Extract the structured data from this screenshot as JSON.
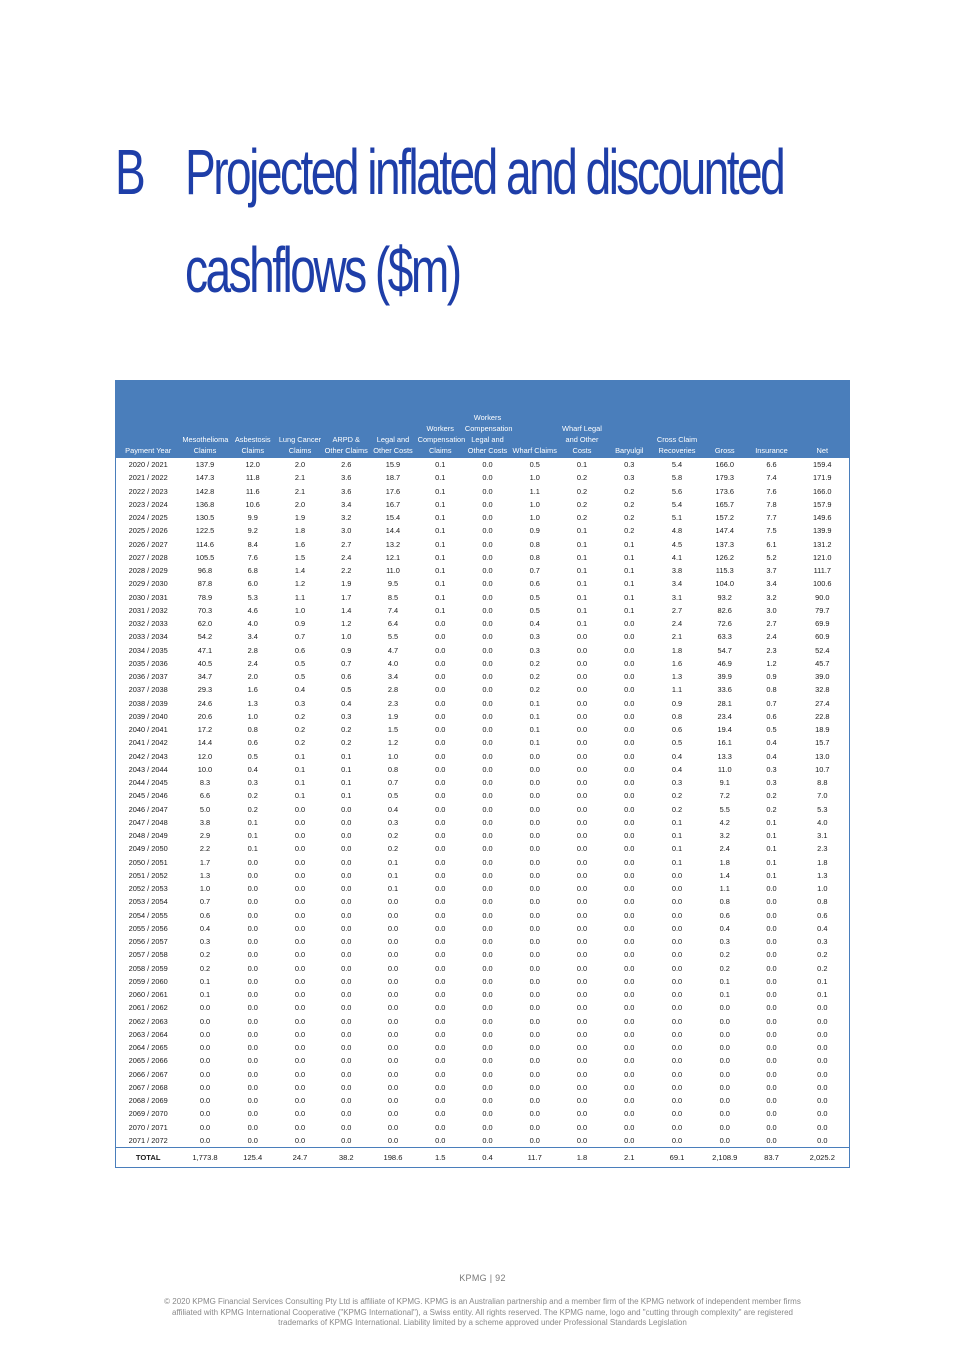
{
  "heading": {
    "letter": "B",
    "title_line1": "Projected inflated and discounted",
    "title_line2": "cashflows ($m)"
  },
  "table": {
    "headers": [
      "Payment Year",
      "Mesothelioma Claims",
      "Asbestosis Claims",
      "Lung Cancer Claims",
      "ARPD & Other Claims",
      "Legal and Other Costs",
      "Workers Compensation Claims",
      "Workers Compensation Legal and Other Costs",
      "Wharf Claims",
      "Wharf Legal and Other Costs",
      "Baryulgil",
      "Cross Claim Recoveries",
      "Gross",
      "Insurance",
      "Net"
    ],
    "rows": [
      [
        "2020 / 2021",
        "137.9",
        "12.0",
        "2.0",
        "2.6",
        "15.9",
        "0.1",
        "0.0",
        "0.5",
        "0.1",
        "0.3",
        "5.4",
        "166.0",
        "6.6",
        "159.4"
      ],
      [
        "2021 / 2022",
        "147.3",
        "11.8",
        "2.1",
        "3.6",
        "18.7",
        "0.1",
        "0.0",
        "1.0",
        "0.2",
        "0.3",
        "5.8",
        "179.3",
        "7.4",
        "171.9"
      ],
      [
        "2022 / 2023",
        "142.8",
        "11.6",
        "2.1",
        "3.6",
        "17.6",
        "0.1",
        "0.0",
        "1.1",
        "0.2",
        "0.2",
        "5.6",
        "173.6",
        "7.6",
        "166.0"
      ],
      [
        "2023 / 2024",
        "136.8",
        "10.6",
        "2.0",
        "3.4",
        "16.7",
        "0.1",
        "0.0",
        "1.0",
        "0.2",
        "0.2",
        "5.4",
        "165.7",
        "7.8",
        "157.9"
      ],
      [
        "2024 / 2025",
        "130.5",
        "9.9",
        "1.9",
        "3.2",
        "15.4",
        "0.1",
        "0.0",
        "1.0",
        "0.2",
        "0.2",
        "5.1",
        "157.2",
        "7.7",
        "149.6"
      ],
      [
        "2025 / 2026",
        "122.5",
        "9.2",
        "1.8",
        "3.0",
        "14.4",
        "0.1",
        "0.0",
        "0.9",
        "0.1",
        "0.2",
        "4.8",
        "147.4",
        "7.5",
        "139.9"
      ],
      [
        "2026 / 2027",
        "114.6",
        "8.4",
        "1.6",
        "2.7",
        "13.2",
        "0.1",
        "0.0",
        "0.8",
        "0.1",
        "0.1",
        "4.5",
        "137.3",
        "6.1",
        "131.2"
      ],
      [
        "2027 / 2028",
        "105.5",
        "7.6",
        "1.5",
        "2.4",
        "12.1",
        "0.1",
        "0.0",
        "0.8",
        "0.1",
        "0.1",
        "4.1",
        "126.2",
        "5.2",
        "121.0"
      ],
      [
        "2028 / 2029",
        "96.8",
        "6.8",
        "1.4",
        "2.2",
        "11.0",
        "0.1",
        "0.0",
        "0.7",
        "0.1",
        "0.1",
        "3.8",
        "115.3",
        "3.7",
        "111.7"
      ],
      [
        "2029 / 2030",
        "87.8",
        "6.0",
        "1.2",
        "1.9",
        "9.5",
        "0.1",
        "0.0",
        "0.6",
        "0.1",
        "0.1",
        "3.4",
        "104.0",
        "3.4",
        "100.6"
      ],
      [
        "2030 / 2031",
        "78.9",
        "5.3",
        "1.1",
        "1.7",
        "8.5",
        "0.1",
        "0.0",
        "0.5",
        "0.1",
        "0.1",
        "3.1",
        "93.2",
        "3.2",
        "90.0"
      ],
      [
        "2031 / 2032",
        "70.3",
        "4.6",
        "1.0",
        "1.4",
        "7.4",
        "0.1",
        "0.0",
        "0.5",
        "0.1",
        "0.1",
        "2.7",
        "82.6",
        "3.0",
        "79.7"
      ],
      [
        "2032 / 2033",
        "62.0",
        "4.0",
        "0.9",
        "1.2",
        "6.4",
        "0.0",
        "0.0",
        "0.4",
        "0.1",
        "0.0",
        "2.4",
        "72.6",
        "2.7",
        "69.9"
      ],
      [
        "2033 / 2034",
        "54.2",
        "3.4",
        "0.7",
        "1.0",
        "5.5",
        "0.0",
        "0.0",
        "0.3",
        "0.0",
        "0.0",
        "2.1",
        "63.3",
        "2.4",
        "60.9"
      ],
      [
        "2034 / 2035",
        "47.1",
        "2.8",
        "0.6",
        "0.9",
        "4.7",
        "0.0",
        "0.0",
        "0.3",
        "0.0",
        "0.0",
        "1.8",
        "54.7",
        "2.3",
        "52.4"
      ],
      [
        "2035 / 2036",
        "40.5",
        "2.4",
        "0.5",
        "0.7",
        "4.0",
        "0.0",
        "0.0",
        "0.2",
        "0.0",
        "0.0",
        "1.6",
        "46.9",
        "1.2",
        "45.7"
      ],
      [
        "2036 / 2037",
        "34.7",
        "2.0",
        "0.5",
        "0.6",
        "3.4",
        "0.0",
        "0.0",
        "0.2",
        "0.0",
        "0.0",
        "1.3",
        "39.9",
        "0.9",
        "39.0"
      ],
      [
        "2037 / 2038",
        "29.3",
        "1.6",
        "0.4",
        "0.5",
        "2.8",
        "0.0",
        "0.0",
        "0.2",
        "0.0",
        "0.0",
        "1.1",
        "33.6",
        "0.8",
        "32.8"
      ],
      [
        "2038 / 2039",
        "24.6",
        "1.3",
        "0.3",
        "0.4",
        "2.3",
        "0.0",
        "0.0",
        "0.1",
        "0.0",
        "0.0",
        "0.9",
        "28.1",
        "0.7",
        "27.4"
      ],
      [
        "2039 / 2040",
        "20.6",
        "1.0",
        "0.2",
        "0.3",
        "1.9",
        "0.0",
        "0.0",
        "0.1",
        "0.0",
        "0.0",
        "0.8",
        "23.4",
        "0.6",
        "22.8"
      ],
      [
        "2040 / 2041",
        "17.2",
        "0.8",
        "0.2",
        "0.2",
        "1.5",
        "0.0",
        "0.0",
        "0.1",
        "0.0",
        "0.0",
        "0.6",
        "19.4",
        "0.5",
        "18.9"
      ],
      [
        "2041 / 2042",
        "14.4",
        "0.6",
        "0.2",
        "0.2",
        "1.2",
        "0.0",
        "0.0",
        "0.1",
        "0.0",
        "0.0",
        "0.5",
        "16.1",
        "0.4",
        "15.7"
      ],
      [
        "2042 / 2043",
        "12.0",
        "0.5",
        "0.1",
        "0.1",
        "1.0",
        "0.0",
        "0.0",
        "0.0",
        "0.0",
        "0.0",
        "0.4",
        "13.3",
        "0.4",
        "13.0"
      ],
      [
        "2043 / 2044",
        "10.0",
        "0.4",
        "0.1",
        "0.1",
        "0.8",
        "0.0",
        "0.0",
        "0.0",
        "0.0",
        "0.0",
        "0.4",
        "11.0",
        "0.3",
        "10.7"
      ],
      [
        "2044 / 2045",
        "8.3",
        "0.3",
        "0.1",
        "0.1",
        "0.7",
        "0.0",
        "0.0",
        "0.0",
        "0.0",
        "0.0",
        "0.3",
        "9.1",
        "0.3",
        "8.8"
      ],
      [
        "2045 / 2046",
        "6.6",
        "0.2",
        "0.1",
        "0.1",
        "0.5",
        "0.0",
        "0.0",
        "0.0",
        "0.0",
        "0.0",
        "0.2",
        "7.2",
        "0.2",
        "7.0"
      ],
      [
        "2046 / 2047",
        "5.0",
        "0.2",
        "0.0",
        "0.0",
        "0.4",
        "0.0",
        "0.0",
        "0.0",
        "0.0",
        "0.0",
        "0.2",
        "5.5",
        "0.2",
        "5.3"
      ],
      [
        "2047 / 2048",
        "3.8",
        "0.1",
        "0.0",
        "0.0",
        "0.3",
        "0.0",
        "0.0",
        "0.0",
        "0.0",
        "0.0",
        "0.1",
        "4.2",
        "0.1",
        "4.0"
      ],
      [
        "2048 / 2049",
        "2.9",
        "0.1",
        "0.0",
        "0.0",
        "0.2",
        "0.0",
        "0.0",
        "0.0",
        "0.0",
        "0.0",
        "0.1",
        "3.2",
        "0.1",
        "3.1"
      ],
      [
        "2049 / 2050",
        "2.2",
        "0.1",
        "0.0",
        "0.0",
        "0.2",
        "0.0",
        "0.0",
        "0.0",
        "0.0",
        "0.0",
        "0.1",
        "2.4",
        "0.1",
        "2.3"
      ],
      [
        "2050 / 2051",
        "1.7",
        "0.0",
        "0.0",
        "0.0",
        "0.1",
        "0.0",
        "0.0",
        "0.0",
        "0.0",
        "0.0",
        "0.1",
        "1.8",
        "0.1",
        "1.8"
      ],
      [
        "2051 / 2052",
        "1.3",
        "0.0",
        "0.0",
        "0.0",
        "0.1",
        "0.0",
        "0.0",
        "0.0",
        "0.0",
        "0.0",
        "0.0",
        "1.4",
        "0.1",
        "1.3"
      ],
      [
        "2052 / 2053",
        "1.0",
        "0.0",
        "0.0",
        "0.0",
        "0.1",
        "0.0",
        "0.0",
        "0.0",
        "0.0",
        "0.0",
        "0.0",
        "1.1",
        "0.0",
        "1.0"
      ],
      [
        "2053 / 2054",
        "0.7",
        "0.0",
        "0.0",
        "0.0",
        "0.0",
        "0.0",
        "0.0",
        "0.0",
        "0.0",
        "0.0",
        "0.0",
        "0.8",
        "0.0",
        "0.8"
      ],
      [
        "2054 / 2055",
        "0.6",
        "0.0",
        "0.0",
        "0.0",
        "0.0",
        "0.0",
        "0.0",
        "0.0",
        "0.0",
        "0.0",
        "0.0",
        "0.6",
        "0.0",
        "0.6"
      ],
      [
        "2055 / 2056",
        "0.4",
        "0.0",
        "0.0",
        "0.0",
        "0.0",
        "0.0",
        "0.0",
        "0.0",
        "0.0",
        "0.0",
        "0.0",
        "0.4",
        "0.0",
        "0.4"
      ],
      [
        "2056 / 2057",
        "0.3",
        "0.0",
        "0.0",
        "0.0",
        "0.0",
        "0.0",
        "0.0",
        "0.0",
        "0.0",
        "0.0",
        "0.0",
        "0.3",
        "0.0",
        "0.3"
      ],
      [
        "2057 / 2058",
        "0.2",
        "0.0",
        "0.0",
        "0.0",
        "0.0",
        "0.0",
        "0.0",
        "0.0",
        "0.0",
        "0.0",
        "0.0",
        "0.2",
        "0.0",
        "0.2"
      ],
      [
        "2058 / 2059",
        "0.2",
        "0.0",
        "0.0",
        "0.0",
        "0.0",
        "0.0",
        "0.0",
        "0.0",
        "0.0",
        "0.0",
        "0.0",
        "0.2",
        "0.0",
        "0.2"
      ],
      [
        "2059 / 2060",
        "0.1",
        "0.0",
        "0.0",
        "0.0",
        "0.0",
        "0.0",
        "0.0",
        "0.0",
        "0.0",
        "0.0",
        "0.0",
        "0.1",
        "0.0",
        "0.1"
      ],
      [
        "2060 / 2061",
        "0.1",
        "0.0",
        "0.0",
        "0.0",
        "0.0",
        "0.0",
        "0.0",
        "0.0",
        "0.0",
        "0.0",
        "0.0",
        "0.1",
        "0.0",
        "0.1"
      ],
      [
        "2061 / 2062",
        "0.0",
        "0.0",
        "0.0",
        "0.0",
        "0.0",
        "0.0",
        "0.0",
        "0.0",
        "0.0",
        "0.0",
        "0.0",
        "0.0",
        "0.0",
        "0.0"
      ],
      [
        "2062 / 2063",
        "0.0",
        "0.0",
        "0.0",
        "0.0",
        "0.0",
        "0.0",
        "0.0",
        "0.0",
        "0.0",
        "0.0",
        "0.0",
        "0.0",
        "0.0",
        "0.0"
      ],
      [
        "2063 / 2064",
        "0.0",
        "0.0",
        "0.0",
        "0.0",
        "0.0",
        "0.0",
        "0.0",
        "0.0",
        "0.0",
        "0.0",
        "0.0",
        "0.0",
        "0.0",
        "0.0"
      ],
      [
        "2064 / 2065",
        "0.0",
        "0.0",
        "0.0",
        "0.0",
        "0.0",
        "0.0",
        "0.0",
        "0.0",
        "0.0",
        "0.0",
        "0.0",
        "0.0",
        "0.0",
        "0.0"
      ],
      [
        "2065 / 2066",
        "0.0",
        "0.0",
        "0.0",
        "0.0",
        "0.0",
        "0.0",
        "0.0",
        "0.0",
        "0.0",
        "0.0",
        "0.0",
        "0.0",
        "0.0",
        "0.0"
      ],
      [
        "2066 / 2067",
        "0.0",
        "0.0",
        "0.0",
        "0.0",
        "0.0",
        "0.0",
        "0.0",
        "0.0",
        "0.0",
        "0.0",
        "0.0",
        "0.0",
        "0.0",
        "0.0"
      ],
      [
        "2067 / 2068",
        "0.0",
        "0.0",
        "0.0",
        "0.0",
        "0.0",
        "0.0",
        "0.0",
        "0.0",
        "0.0",
        "0.0",
        "0.0",
        "0.0",
        "0.0",
        "0.0"
      ],
      [
        "2068 / 2069",
        "0.0",
        "0.0",
        "0.0",
        "0.0",
        "0.0",
        "0.0",
        "0.0",
        "0.0",
        "0.0",
        "0.0",
        "0.0",
        "0.0",
        "0.0",
        "0.0"
      ],
      [
        "2069 / 2070",
        "0.0",
        "0.0",
        "0.0",
        "0.0",
        "0.0",
        "0.0",
        "0.0",
        "0.0",
        "0.0",
        "0.0",
        "0.0",
        "0.0",
        "0.0",
        "0.0"
      ],
      [
        "2070 / 2071",
        "0.0",
        "0.0",
        "0.0",
        "0.0",
        "0.0",
        "0.0",
        "0.0",
        "0.0",
        "0.0",
        "0.0",
        "0.0",
        "0.0",
        "0.0",
        "0.0"
      ],
      [
        "2071 / 2072",
        "0.0",
        "0.0",
        "0.0",
        "0.0",
        "0.0",
        "0.0",
        "0.0",
        "0.0",
        "0.0",
        "0.0",
        "0.0",
        "0.0",
        "0.0",
        "0.0"
      ]
    ],
    "total": [
      "TOTAL",
      "1,773.8",
      "125.4",
      "24.7",
      "38.2",
      "198.6",
      "1.5",
      "0.4",
      "11.7",
      "1.8",
      "2.1",
      "69.1",
      "2,108.9",
      "83.7",
      "2,025.2"
    ]
  },
  "footer": {
    "page_label": "KPMG  |  92",
    "copyright_line1": "© 2020 KPMG Financial Services Consulting Pty Ltd is affiliate of KPMG. KPMG is an Australian partnership and a member firm of the KPMG network of independent member firms",
    "copyright_line2": "affiliated with KPMG International Cooperative (\"KPMG International\"), a Swiss entity. All rights reserved. The KPMG name, logo and \"cutting through complexity\" are registered",
    "copyright_line3": "trademarks of KPMG International. Liability limited by a scheme approved under Professional Standards Legislation"
  }
}
